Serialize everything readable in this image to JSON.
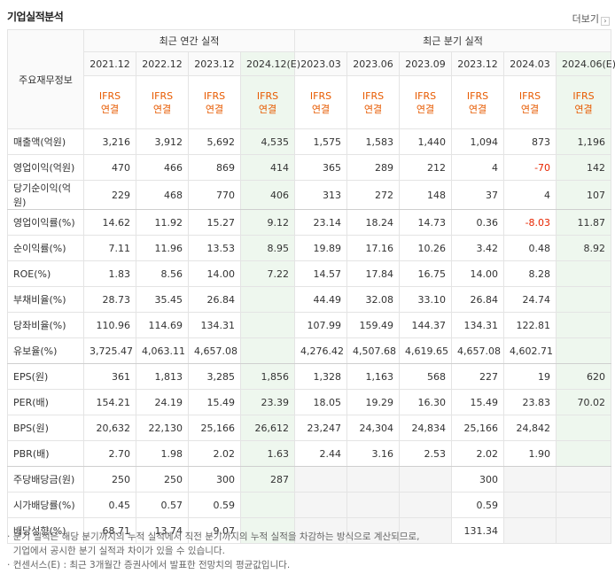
{
  "section_title": "기업실적분석",
  "more_label": "더보기",
  "header": {
    "corner": "주요재무정보",
    "annual_group": "최근 연간 실적",
    "quarter_group": "최근 분기 실적",
    "annual_periods": [
      "2021.12",
      "2022.12",
      "2023.12",
      "2024.12(E)"
    ],
    "quarter_periods": [
      "2023.03",
      "2023.06",
      "2023.09",
      "2023.12",
      "2024.03",
      "2024.06(E)"
    ],
    "ifrs_label": "IFRS",
    "basis_label": "연결"
  },
  "rows": [
    {
      "label": "매출액(억원)",
      "values": [
        "3,216",
        "3,912",
        "5,692",
        "4,535",
        "1,575",
        "1,583",
        "1,440",
        "1,094",
        "873",
        "1,196"
      ]
    },
    {
      "label": "영업이익(억원)",
      "values": [
        "470",
        "466",
        "869",
        "414",
        "365",
        "289",
        "212",
        "4",
        "-70",
        "142"
      ]
    },
    {
      "label": "당기순이익(억원)",
      "values": [
        "229",
        "468",
        "770",
        "406",
        "313",
        "272",
        "148",
        "37",
        "4",
        "107"
      ]
    },
    {
      "label": "영업이익률(%)",
      "values": [
        "14.62",
        "11.92",
        "15.27",
        "9.12",
        "23.14",
        "18.24",
        "14.73",
        "0.36",
        "-8.03",
        "11.87"
      ]
    },
    {
      "label": "순이익률(%)",
      "values": [
        "7.11",
        "11.96",
        "13.53",
        "8.95",
        "19.89",
        "17.16",
        "10.26",
        "3.42",
        "0.48",
        "8.92"
      ]
    },
    {
      "label": "ROE(%)",
      "values": [
        "1.83",
        "8.56",
        "14.00",
        "7.22",
        "14.57",
        "17.84",
        "16.75",
        "14.00",
        "8.28",
        ""
      ]
    },
    {
      "label": "부채비율(%)",
      "values": [
        "28.73",
        "35.45",
        "26.84",
        "",
        "44.49",
        "32.08",
        "33.10",
        "26.84",
        "24.74",
        ""
      ]
    },
    {
      "label": "당좌비율(%)",
      "values": [
        "110.96",
        "114.69",
        "134.31",
        "",
        "107.99",
        "159.49",
        "144.37",
        "134.31",
        "122.81",
        ""
      ]
    },
    {
      "label": "유보율(%)",
      "values": [
        "3,725.47",
        "4,063.11",
        "4,657.08",
        "",
        "4,276.42",
        "4,507.68",
        "4,619.65",
        "4,657.08",
        "4,602.71",
        ""
      ]
    },
    {
      "label": "EPS(원)",
      "values": [
        "361",
        "1,813",
        "3,285",
        "1,856",
        "1,328",
        "1,163",
        "568",
        "227",
        "19",
        "620"
      ]
    },
    {
      "label": "PER(배)",
      "values": [
        "154.21",
        "24.19",
        "15.49",
        "23.39",
        "18.05",
        "19.29",
        "16.30",
        "15.49",
        "23.83",
        "70.02"
      ]
    },
    {
      "label": "BPS(원)",
      "values": [
        "20,632",
        "22,130",
        "25,166",
        "26,612",
        "23,247",
        "24,304",
        "24,834",
        "25,166",
        "24,842",
        ""
      ]
    },
    {
      "label": "PBR(배)",
      "values": [
        "2.70",
        "1.98",
        "2.02",
        "1.63",
        "2.44",
        "3.16",
        "2.53",
        "2.02",
        "1.90",
        ""
      ]
    },
    {
      "label": "주당배당금(원)",
      "values": [
        "250",
        "250",
        "300",
        "287",
        "",
        "",
        "",
        "300",
        "",
        ""
      ]
    },
    {
      "label": "시가배당률(%)",
      "values": [
        "0.45",
        "0.57",
        "0.59",
        "",
        "",
        "",
        "",
        "0.59",
        "",
        ""
      ]
    },
    {
      "label": "배당성향(%)",
      "values": [
        "68.71",
        "13.74",
        "9.07",
        "",
        "",
        "",
        "",
        "131.34",
        "",
        ""
      ]
    }
  ],
  "notes": [
    "분기 실적은 해당 분기까지의 누적 실적에서 직전 분기까지의 누적 실적을 차감하는 방식으로 계산되므로,",
    "기업에서 공시한 분기 실적과 차이가 있을 수 있습니다.",
    "컨센서스(E) : 최근 3개월간 증권사에서 발표한 전망치의 평균값입니다."
  ],
  "colors": {
    "estimate_bg": "#eef7ee",
    "ifrs_orange": "#e75a00",
    "negative_red": "#e72500"
  }
}
